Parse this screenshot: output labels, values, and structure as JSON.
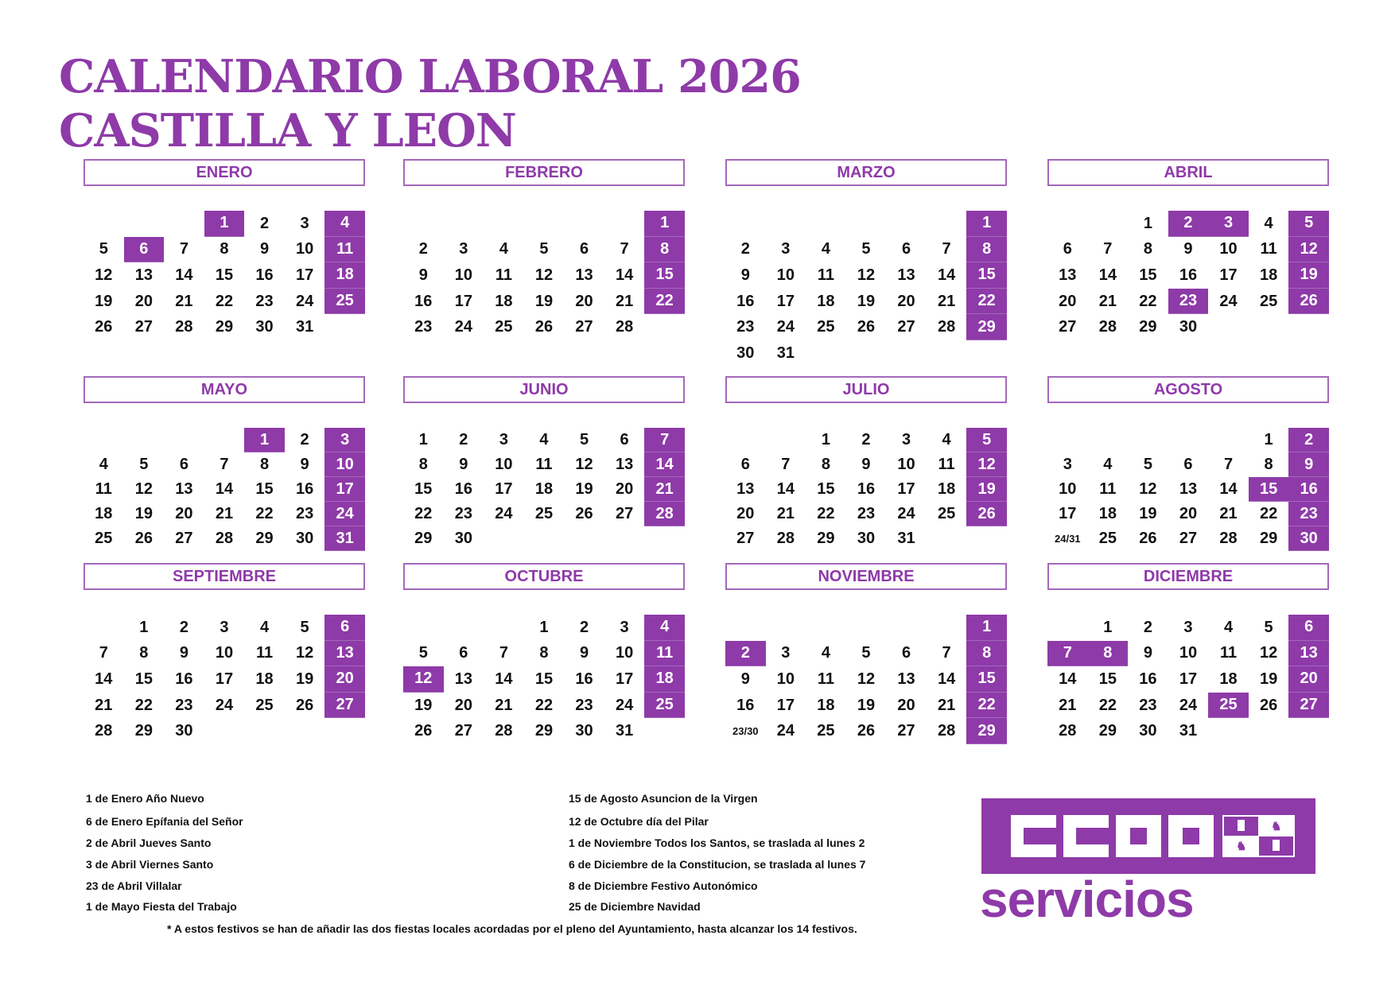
{
  "title": {
    "line1": "CALENDARIO LABORAL 2026",
    "line2": "CASTILLA Y LEON"
  },
  "colors": {
    "accent": "#8e3aa8",
    "text": "#111111"
  },
  "months": [
    {
      "name": "ENERO",
      "weeks": [
        [
          null,
          null,
          null,
          1,
          2,
          3,
          4
        ],
        [
          5,
          6,
          7,
          8,
          9,
          10,
          11
        ],
        [
          12,
          13,
          14,
          15,
          16,
          17,
          18
        ],
        [
          19,
          20,
          21,
          22,
          23,
          24,
          25
        ],
        [
          26,
          27,
          28,
          29,
          30,
          31,
          null
        ]
      ],
      "highlighted": [
        1,
        4,
        6,
        11,
        18,
        25
      ]
    },
    {
      "name": "FEBRERO",
      "weeks": [
        [
          null,
          null,
          null,
          null,
          null,
          null,
          1
        ],
        [
          2,
          3,
          4,
          5,
          6,
          7,
          8
        ],
        [
          9,
          10,
          11,
          12,
          13,
          14,
          15
        ],
        [
          16,
          17,
          18,
          19,
          20,
          21,
          22
        ],
        [
          23,
          24,
          25,
          26,
          27,
          28,
          null
        ]
      ],
      "highlighted": [
        1,
        8,
        15,
        22
      ]
    },
    {
      "name": "MARZO",
      "weeks": [
        [
          null,
          null,
          null,
          null,
          null,
          null,
          1
        ],
        [
          2,
          3,
          4,
          5,
          6,
          7,
          8
        ],
        [
          9,
          10,
          11,
          12,
          13,
          14,
          15
        ],
        [
          16,
          17,
          18,
          19,
          20,
          21,
          22
        ],
        [
          23,
          24,
          25,
          26,
          27,
          28,
          29
        ],
        [
          30,
          31,
          null,
          null,
          null,
          null,
          null
        ]
      ],
      "highlighted": [
        1,
        8,
        15,
        22,
        29
      ]
    },
    {
      "name": "ABRIL",
      "weeks": [
        [
          null,
          null,
          1,
          2,
          3,
          4,
          5
        ],
        [
          6,
          7,
          8,
          9,
          10,
          11,
          12
        ],
        [
          13,
          14,
          15,
          16,
          17,
          18,
          19
        ],
        [
          20,
          21,
          22,
          23,
          24,
          25,
          26
        ],
        [
          27,
          28,
          29,
          30,
          null,
          null,
          null
        ]
      ],
      "highlighted": [
        2,
        3,
        5,
        12,
        19,
        23,
        26
      ]
    },
    {
      "name": "MAYO",
      "weeks": [
        [
          null,
          null,
          null,
          null,
          1,
          2,
          3
        ],
        [
          4,
          5,
          6,
          7,
          8,
          9,
          10
        ],
        [
          11,
          12,
          13,
          14,
          15,
          16,
          17
        ],
        [
          18,
          19,
          20,
          21,
          22,
          23,
          24
        ],
        [
          25,
          26,
          27,
          28,
          29,
          30,
          31
        ]
      ],
      "highlighted": [
        1,
        3,
        10,
        17,
        24,
        31
      ]
    },
    {
      "name": "JUNIO",
      "weeks": [
        [
          1,
          2,
          3,
          4,
          5,
          6,
          7
        ],
        [
          8,
          9,
          10,
          11,
          12,
          13,
          14
        ],
        [
          15,
          16,
          17,
          18,
          19,
          20,
          21
        ],
        [
          22,
          23,
          24,
          25,
          26,
          27,
          28
        ],
        [
          29,
          30,
          null,
          null,
          null,
          null,
          null
        ]
      ],
      "highlighted": [
        7,
        14,
        21,
        28
      ]
    },
    {
      "name": "JULIO",
      "weeks": [
        [
          null,
          null,
          1,
          2,
          3,
          4,
          5
        ],
        [
          6,
          7,
          8,
          9,
          10,
          11,
          12
        ],
        [
          13,
          14,
          15,
          16,
          17,
          18,
          19
        ],
        [
          20,
          21,
          22,
          23,
          24,
          25,
          26
        ],
        [
          27,
          28,
          29,
          30,
          31,
          null,
          null
        ]
      ],
      "highlighted": [
        5,
        12,
        19,
        26
      ]
    },
    {
      "name": "AGOSTO",
      "weeks": [
        [
          null,
          null,
          null,
          null,
          null,
          1,
          2
        ],
        [
          3,
          4,
          5,
          6,
          7,
          8,
          9
        ],
        [
          10,
          11,
          12,
          13,
          14,
          15,
          16
        ],
        [
          17,
          18,
          19,
          20,
          21,
          22,
          23
        ],
        [
          "24/31",
          25,
          26,
          27,
          28,
          29,
          30
        ]
      ],
      "highlighted": [
        2,
        9,
        15,
        16,
        23,
        30
      ]
    },
    {
      "name": "SEPTIEMBRE",
      "weeks": [
        [
          null,
          1,
          2,
          3,
          4,
          5,
          6
        ],
        [
          7,
          8,
          9,
          10,
          11,
          12,
          13
        ],
        [
          14,
          15,
          16,
          17,
          18,
          19,
          20
        ],
        [
          21,
          22,
          23,
          24,
          25,
          26,
          27
        ],
        [
          28,
          29,
          30,
          null,
          null,
          null,
          null
        ]
      ],
      "highlighted": [
        6,
        13,
        20,
        27
      ]
    },
    {
      "name": "OCTUBRE",
      "weeks": [
        [
          null,
          null,
          null,
          1,
          2,
          3,
          4
        ],
        [
          5,
          6,
          7,
          8,
          9,
          10,
          11
        ],
        [
          12,
          13,
          14,
          15,
          16,
          17,
          18
        ],
        [
          19,
          20,
          21,
          22,
          23,
          24,
          25
        ],
        [
          26,
          27,
          28,
          29,
          30,
          31,
          null
        ]
      ],
      "highlighted": [
        4,
        11,
        12,
        18,
        25
      ]
    },
    {
      "name": "NOVIEMBRE",
      "weeks": [
        [
          null,
          null,
          null,
          null,
          null,
          null,
          1
        ],
        [
          2,
          3,
          4,
          5,
          6,
          7,
          8
        ],
        [
          9,
          10,
          11,
          12,
          13,
          14,
          15
        ],
        [
          16,
          17,
          18,
          19,
          20,
          21,
          22
        ],
        [
          "23/30",
          24,
          25,
          26,
          27,
          28,
          29
        ]
      ],
      "highlighted": [
        1,
        2,
        8,
        15,
        22,
        29
      ]
    },
    {
      "name": "DICIEMBRE",
      "weeks": [
        [
          null,
          1,
          2,
          3,
          4,
          5,
          6
        ],
        [
          7,
          8,
          9,
          10,
          11,
          12,
          13
        ],
        [
          14,
          15,
          16,
          17,
          18,
          19,
          20
        ],
        [
          21,
          22,
          23,
          24,
          25,
          26,
          27
        ],
        [
          28,
          29,
          30,
          31,
          null,
          null,
          null
        ]
      ],
      "highlighted": [
        6,
        7,
        8,
        13,
        20,
        25,
        27
      ]
    }
  ],
  "holidays_left": [
    "1 de Enero Año Nuevo",
    "6 de Enero Epífania del Señor",
    "2 de Abril Jueves Santo",
    "3 de Abril Viernes Santo",
    "23 de Abril Villalar",
    "1 de Mayo Fiesta del Trabajo"
  ],
  "holidays_right": [
    "15 de Agosto Asuncion de la Virgen",
    "12 de Octubre día del Pilar",
    "1 de Noviembre Todos los Santos, se traslada al lunes 2",
    "6 de Diciembre de la Constitucion, se traslada al lunes 7",
    "8 de Diciembre Festivo Autonómico",
    "25 de Diciembre Navidad"
  ],
  "footnote": "* A estos festivos se han de añadir las dos fiestas locales acordadas por el pleno del Ayuntamiento, hasta alcanzar los 14 festivos.",
  "logo": {
    "brand": "CCOO",
    "subtitle": "servicios",
    "emblem": "castilla-leon-flag-icon"
  }
}
